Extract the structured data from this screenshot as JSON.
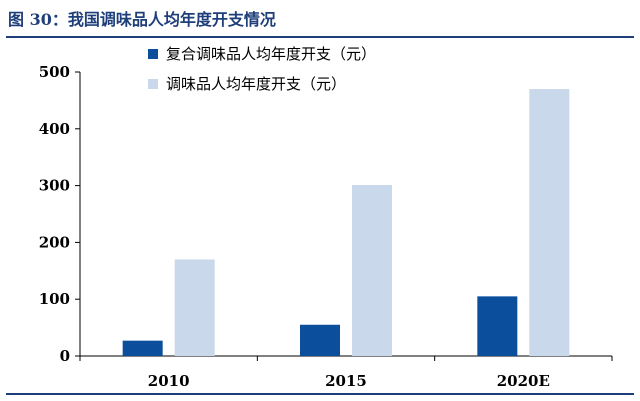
{
  "figure": {
    "caption": "图 30：我国调味品人均年度开支情况"
  },
  "chart_data": {
    "type": "bar",
    "title": "",
    "xlabel": "",
    "ylabel": "",
    "categories": [
      "2010",
      "2015",
      "2020E"
    ],
    "series": [
      {
        "name": "复合调味品人均年度开支（元）",
        "values": [
          27,
          55,
          105
        ],
        "color": "#0b4f9c"
      },
      {
        "name": "调味品人均年度开支（元）",
        "values": [
          170,
          301,
          470
        ],
        "color": "#c9d8ea"
      }
    ],
    "ylim": [
      0,
      500
    ],
    "yticks": [
      0,
      100,
      200,
      300,
      400,
      500
    ],
    "grid": false,
    "legend": "top-left"
  }
}
